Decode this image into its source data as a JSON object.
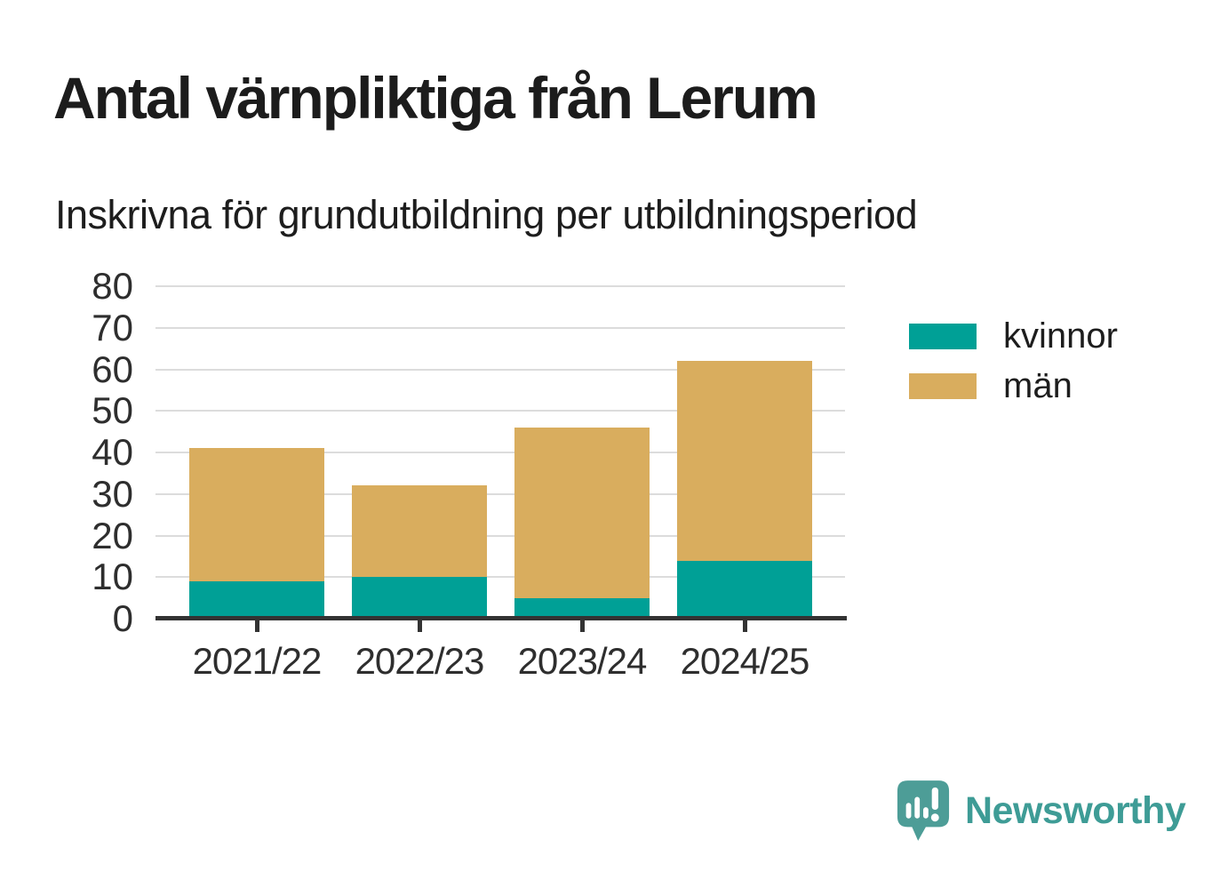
{
  "title": "Antal värnpliktiga från Lerum",
  "subtitle": "Inskrivna för grundutbildning per utbildningsperiod",
  "chart_data": {
    "type": "bar",
    "stacked": true,
    "title": "Antal värnpliktiga från Lerum",
    "subtitle": "Inskrivna för grundutbildning per utbildningsperiod",
    "categories": [
      "2021/22",
      "2022/23",
      "2023/24",
      "2024/25"
    ],
    "series": [
      {
        "name": "kvinnor",
        "color": "#00A096",
        "values": [
          9,
          10,
          5,
          14
        ]
      },
      {
        "name": "män",
        "color": "#D9AD5E",
        "values": [
          32,
          22,
          41,
          48
        ]
      }
    ],
    "totals": [
      41,
      32,
      46,
      62
    ],
    "xlabel": "",
    "ylabel": "",
    "ylim": [
      0,
      80
    ],
    "ytick_step": 10,
    "grid": true,
    "legend_position": "right"
  },
  "colors": {
    "kvinnor": "#00A096",
    "man": "#D9AD5E",
    "brand_teal": "#3E9C96",
    "grid": "#DCDCDC",
    "axis": "#333333",
    "text": "#1D1D1D"
  },
  "branding": {
    "logo_text": "Newsworthy",
    "logo_icon": "bar-chart-speech-bubble-icon"
  }
}
